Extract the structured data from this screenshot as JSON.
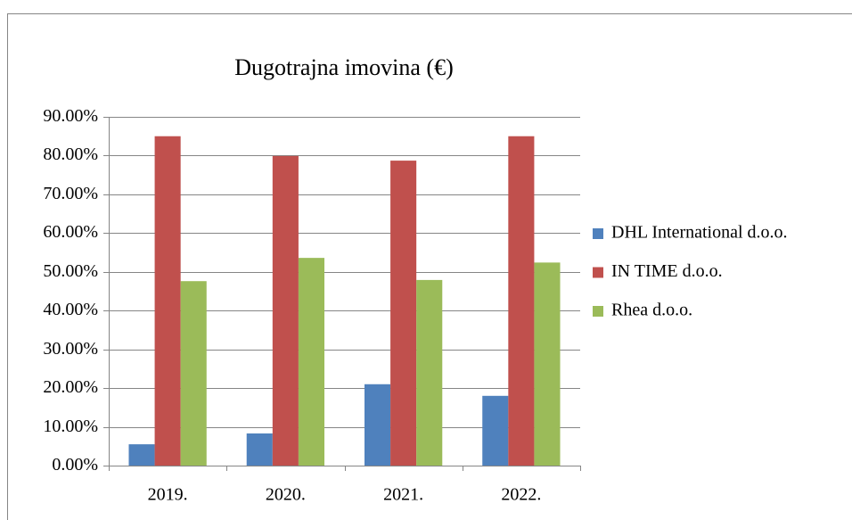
{
  "chart_data": {
    "type": "bar",
    "title": "Dugotrajna imovina (€)",
    "categories": [
      "2019.",
      "2020.",
      "2021.",
      "2022."
    ],
    "series": [
      {
        "name": "DHL International d.o.o.",
        "color": "#4f81bd",
        "values": [
          5.5,
          8.3,
          21.0,
          18.0
        ]
      },
      {
        "name": "IN TIME d.o.o.",
        "color": "#c0504d",
        "values": [
          85.0,
          79.9,
          78.7,
          85.0
        ]
      },
      {
        "name": "Rhea d.o.o.",
        "color": "#9bbb59",
        "values": [
          47.6,
          53.6,
          47.9,
          52.4
        ]
      }
    ],
    "ylim": [
      0,
      90
    ],
    "yticks": [
      {
        "value": 0,
        "label": "0.00%"
      },
      {
        "value": 10,
        "label": "10.00%"
      },
      {
        "value": 20,
        "label": "20.00%"
      },
      {
        "value": 30,
        "label": "30.00%"
      },
      {
        "value": 40,
        "label": "40.00%"
      },
      {
        "value": 50,
        "label": "50.00%"
      },
      {
        "value": 60,
        "label": "60.00%"
      },
      {
        "value": 70,
        "label": "70.00%"
      },
      {
        "value": 80,
        "label": "80.00%"
      },
      {
        "value": 90,
        "label": "90.00%"
      }
    ],
    "grid": true,
    "legend": "right"
  }
}
